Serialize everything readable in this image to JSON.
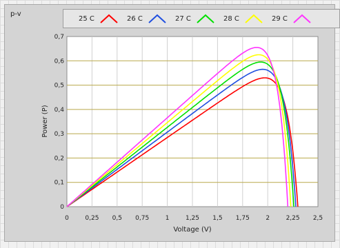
{
  "graph": {
    "name": "p-v"
  },
  "legend": [
    {
      "label": "25 C",
      "color": "#ff0000"
    },
    {
      "label": "26 C",
      "color": "#1f4fe0"
    },
    {
      "label": "27 C",
      "color": "#00e000"
    },
    {
      "label": "28 C",
      "color": "#ffff00"
    },
    {
      "label": "29 C",
      "color": "#ff33ff"
    }
  ],
  "chart_data": {
    "type": "line",
    "title": "",
    "xlabel": "Voltage (V)",
    "ylabel": "Power (P)",
    "xlim": [
      0,
      2.5
    ],
    "ylim": [
      0,
      0.7
    ],
    "x_ticks": [
      "0",
      "0,25",
      "0,5",
      "0,75",
      "1",
      "1,25",
      "1,5",
      "1,75",
      "2",
      "2,25",
      "2,5"
    ],
    "y_ticks": [
      "0",
      "0,1",
      "0,2",
      "0,3",
      "0,4",
      "0,5",
      "0,6",
      "0,7"
    ],
    "grid": true,
    "series": [
      {
        "name": "25 C",
        "color": "#ff0000",
        "mpp": [
          1.97,
          0.53
        ],
        "voc": 2.3
      },
      {
        "name": "26 C",
        "color": "#1f4fe0",
        "mpp": [
          1.95,
          0.565
        ],
        "voc": 2.28
      },
      {
        "name": "27 C",
        "color": "#00e000",
        "mpp": [
          1.93,
          0.595
        ],
        "voc": 2.26
      },
      {
        "name": "28 C",
        "color": "#ffff00",
        "mpp": [
          1.91,
          0.625
        ],
        "voc": 2.23
      },
      {
        "name": "29 C",
        "color": "#ff33ff",
        "mpp": [
          1.89,
          0.655
        ],
        "voc": 2.2
      }
    ]
  }
}
